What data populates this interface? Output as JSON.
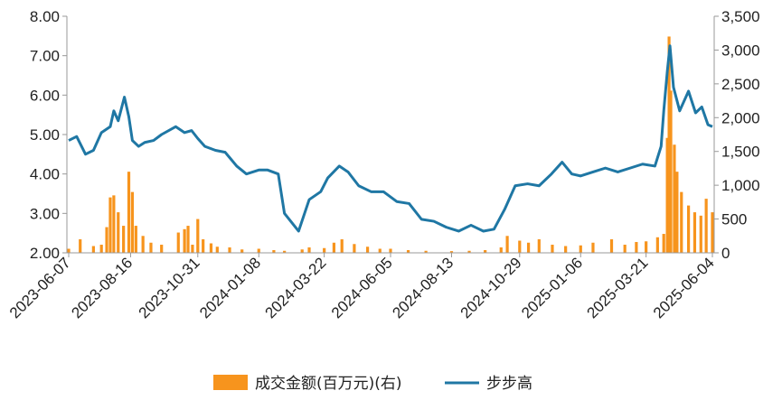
{
  "chart_data": {
    "type": "bar+line",
    "title": "",
    "x_tick_labels": [
      "2023-06-07",
      "2023-08-16",
      "2023-10-31",
      "2024-01-08",
      "2024-03-22",
      "2024-06-05",
      "2024-08-13",
      "2024-10-29",
      "2025-01-06",
      "2025-03-21",
      "2025-06-04"
    ],
    "y_left": {
      "min": 2.0,
      "max": 8.0,
      "ticks": [
        "2.00",
        "3.00",
        "4.00",
        "5.00",
        "6.00",
        "7.00",
        "8.00"
      ]
    },
    "y_right": {
      "min": 0,
      "max": 3500,
      "ticks": [
        "0",
        "500",
        "1,000",
        "1,500",
        "2,000",
        "2,500",
        "3,000",
        "3,500"
      ]
    },
    "grid": false,
    "legend_position": "bottom",
    "colors": {
      "bar": "#f7941d",
      "line": "#1f77a4",
      "axis": "#999999"
    },
    "series": [
      {
        "name": "成交金额(百万元)(右)",
        "kind": "bar",
        "axis": "right",
        "dates": [
          "2023-06-07",
          "2023-06-20",
          "2023-07-05",
          "2023-07-14",
          "2023-07-20",
          "2023-07-24",
          "2023-07-28",
          "2023-08-02",
          "2023-08-08",
          "2023-08-14",
          "2023-08-18",
          "2023-08-22",
          "2023-08-30",
          "2023-09-08",
          "2023-09-20",
          "2023-10-09",
          "2023-10-16",
          "2023-10-20",
          "2023-10-25",
          "2023-10-31",
          "2023-11-06",
          "2023-11-15",
          "2023-11-22",
          "2023-12-06",
          "2023-12-20",
          "2024-01-08",
          "2024-01-25",
          "2024-02-06",
          "2024-02-26",
          "2024-03-05",
          "2024-03-22",
          "2024-04-02",
          "2024-04-11",
          "2024-04-25",
          "2024-05-10",
          "2024-05-24",
          "2024-06-05",
          "2024-06-25",
          "2024-07-15",
          "2024-08-13",
          "2024-09-02",
          "2024-09-20",
          "2024-10-08",
          "2024-10-15",
          "2024-10-29",
          "2024-11-08",
          "2024-11-20",
          "2024-12-05",
          "2024-12-20",
          "2025-01-06",
          "2025-01-20",
          "2025-02-10",
          "2025-02-25",
          "2025-03-10",
          "2025-03-21",
          "2025-04-03",
          "2025-04-10",
          "2025-04-14",
          "2025-04-16",
          "2025-04-18",
          "2025-04-22",
          "2025-04-25",
          "2025-04-30",
          "2025-05-08",
          "2025-05-15",
          "2025-05-22",
          "2025-05-28",
          "2025-06-04"
        ],
        "values": [
          60,
          200,
          100,
          120,
          380,
          820,
          850,
          600,
          400,
          1200,
          900,
          400,
          250,
          150,
          120,
          300,
          350,
          400,
          120,
          500,
          200,
          140,
          90,
          80,
          50,
          60,
          40,
          30,
          50,
          80,
          70,
          150,
          200,
          130,
          90,
          60,
          60,
          40,
          30,
          25,
          30,
          40,
          80,
          250,
          180,
          150,
          200,
          120,
          100,
          110,
          150,
          200,
          120,
          160,
          170,
          230,
          280,
          1700,
          3200,
          2400,
          1600,
          1200,
          900,
          700,
          600,
          550,
          800,
          600
        ]
      },
      {
        "name": "步步高",
        "kind": "line",
        "axis": "left",
        "dates": [
          "2023-06-07",
          "2023-06-16",
          "2023-06-26",
          "2023-07-05",
          "2023-07-14",
          "2023-07-24",
          "2023-07-28",
          "2023-08-02",
          "2023-08-09",
          "2023-08-14",
          "2023-08-18",
          "2023-08-25",
          "2023-09-01",
          "2023-09-11",
          "2023-09-20",
          "2023-10-06",
          "2023-10-16",
          "2023-10-24",
          "2023-10-31",
          "2023-11-08",
          "2023-11-20",
          "2023-12-01",
          "2023-12-14",
          "2023-12-25",
          "2024-01-08",
          "2024-01-18",
          "2024-01-30",
          "2024-02-06",
          "2024-02-22",
          "2024-03-05",
          "2024-03-18",
          "2024-03-26",
          "2024-04-08",
          "2024-04-18",
          "2024-04-30",
          "2024-05-14",
          "2024-05-28",
          "2024-06-12",
          "2024-06-26",
          "2024-07-10",
          "2024-07-24",
          "2024-08-07",
          "2024-08-21",
          "2024-09-04",
          "2024-09-18",
          "2024-09-30",
          "2024-10-12",
          "2024-10-24",
          "2024-11-07",
          "2024-11-20",
          "2024-12-04",
          "2024-12-16",
          "2024-12-27",
          "2025-01-06",
          "2025-01-20",
          "2025-02-03",
          "2025-02-17",
          "2025-03-03",
          "2025-03-17",
          "2025-03-31",
          "2025-04-07",
          "2025-04-10",
          "2025-04-14",
          "2025-04-17",
          "2025-04-21",
          "2025-04-28",
          "2025-05-08",
          "2025-05-16",
          "2025-05-23",
          "2025-05-30",
          "2025-06-04"
        ],
        "values": [
          4.85,
          4.95,
          4.5,
          4.6,
          5.05,
          5.2,
          5.6,
          5.35,
          5.95,
          5.45,
          4.85,
          4.7,
          4.8,
          4.85,
          5.0,
          5.2,
          5.05,
          5.1,
          4.9,
          4.7,
          4.6,
          4.55,
          4.2,
          4.0,
          4.1,
          4.1,
          4.0,
          3.0,
          2.55,
          3.35,
          3.55,
          3.9,
          4.2,
          4.05,
          3.7,
          3.55,
          3.55,
          3.3,
          3.25,
          2.85,
          2.8,
          2.65,
          2.55,
          2.7,
          2.55,
          2.6,
          3.1,
          3.7,
          3.75,
          3.7,
          4.0,
          4.3,
          4.0,
          3.95,
          4.05,
          4.15,
          4.05,
          4.15,
          4.25,
          4.2,
          4.7,
          5.6,
          6.6,
          7.25,
          6.2,
          5.6,
          6.1,
          5.55,
          5.7,
          5.25,
          5.2
        ]
      }
    ]
  }
}
